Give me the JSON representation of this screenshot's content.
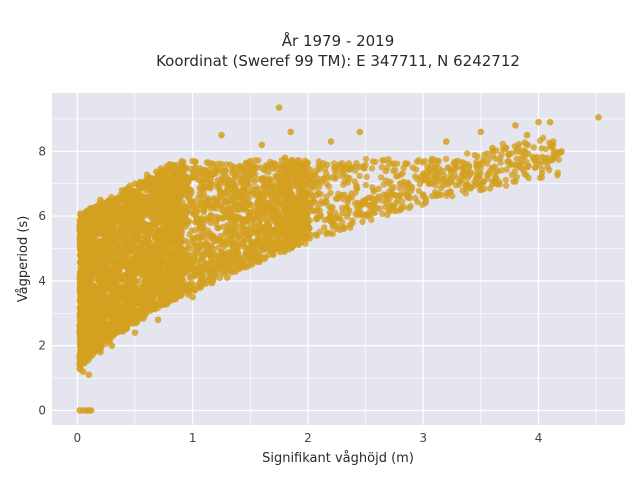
{
  "chart_data": {
    "type": "scatter",
    "title_line1": "År 1979 - 2019",
    "title_line2": "Koordinat (Sweref 99 TM): E 347711, N 6242712",
    "xlabel": "Signifikant våghöjd (m)",
    "ylabel": "Vågperiod (s)",
    "xlim": [
      -0.22,
      4.75
    ],
    "ylim": [
      -0.45,
      9.8
    ],
    "x_ticks": [
      0,
      1,
      2,
      3,
      4
    ],
    "y_ticks": [
      0,
      2,
      4,
      6,
      8
    ],
    "x_tick_labels": [
      "0",
      "1",
      "2",
      "3",
      "4"
    ],
    "y_tick_labels": [
      "0",
      "2",
      "4",
      "6",
      "8"
    ],
    "grid": true,
    "series": [
      {
        "color": "#d4a020",
        "description_points": [
          [
            0.02,
            0.0
          ],
          [
            0.05,
            0.0
          ],
          [
            0.08,
            0.0
          ],
          [
            0.1,
            0.0
          ],
          [
            0.12,
            0.0
          ],
          [
            0.02,
            1.4
          ],
          [
            0.05,
            1.2
          ],
          [
            0.1,
            1.1
          ],
          [
            0.2,
            1.8
          ],
          [
            0.3,
            2.0
          ],
          [
            0.5,
            2.4
          ],
          [
            0.7,
            2.8
          ],
          [
            1.0,
            3.5
          ],
          [
            1.3,
            4.1
          ],
          [
            1.6,
            5.0
          ],
          [
            1.9,
            5.6
          ],
          [
            2.2,
            6.0
          ],
          [
            2.5,
            6.5
          ],
          [
            2.8,
            7.0
          ],
          [
            3.0,
            7.3
          ],
          [
            3.3,
            7.7
          ],
          [
            3.6,
            8.1
          ],
          [
            3.9,
            8.5
          ],
          [
            4.1,
            8.9
          ],
          [
            4.52,
            9.05
          ],
          [
            0.1,
            5.9
          ],
          [
            0.3,
            6.4
          ],
          [
            0.5,
            7.0
          ],
          [
            0.8,
            7.6
          ],
          [
            1.0,
            7.7
          ],
          [
            1.2,
            7.5
          ],
          [
            1.5,
            7.7
          ],
          [
            1.8,
            7.8
          ],
          [
            1.75,
            9.35
          ],
          [
            1.85,
            8.6
          ],
          [
            1.25,
            8.5
          ],
          [
            1.6,
            8.2
          ],
          [
            2.45,
            8.6
          ],
          [
            2.2,
            8.3
          ],
          [
            3.2,
            8.3
          ],
          [
            3.5,
            8.6
          ],
          [
            3.8,
            8.8
          ],
          [
            4.0,
            8.9
          ],
          [
            0.2,
            6.5
          ],
          [
            0.6,
            6.3
          ],
          [
            1.3,
            4.3
          ],
          [
            1.4,
            4.6
          ],
          [
            2.0,
            5.5
          ],
          [
            2.3,
            6.1
          ],
          [
            3.1,
            7.5
          ]
        ]
      }
    ]
  }
}
